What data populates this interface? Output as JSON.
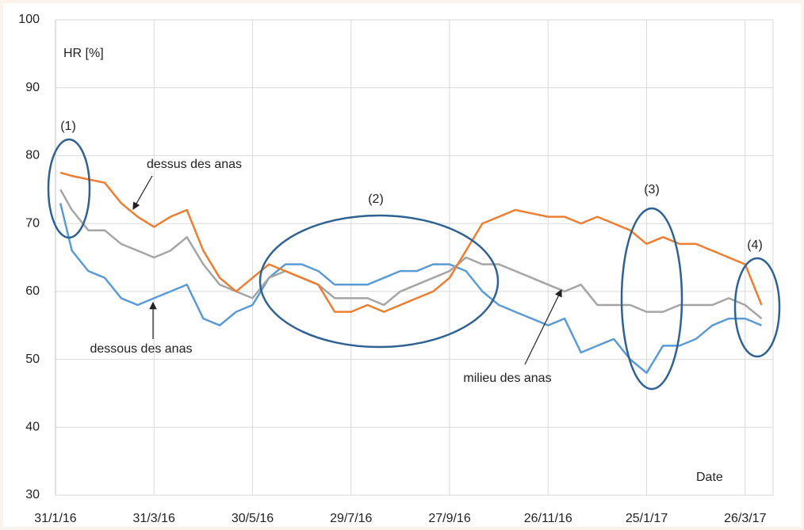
{
  "chart_data": {
    "type": "line",
    "x": [
      "3/2/16",
      "10/2/16",
      "20/2/16",
      "1/3/16",
      "11/3/16",
      "21/3/16",
      "31/3/16",
      "10/4/16",
      "20/4/16",
      "30/4/16",
      "10/5/16",
      "20/5/16",
      "30/5/16",
      "9/6/16",
      "19/6/16",
      "29/6/16",
      "9/7/16",
      "19/7/16",
      "29/7/16",
      "8/8/16",
      "18/8/16",
      "28/8/16",
      "7/9/16",
      "17/9/16",
      "27/9/16",
      "7/10/16",
      "17/10/16",
      "27/10/16",
      "6/11/16",
      "16/11/16",
      "26/11/16",
      "6/12/16",
      "16/12/16",
      "26/12/16",
      "5/1/17",
      "15/1/17",
      "25/1/17",
      "4/2/17",
      "14/2/17",
      "24/2/17",
      "6/3/17",
      "16/3/17",
      "26/3/17",
      "5/4/17"
    ],
    "series": [
      {
        "name": "dessus des anas",
        "color": "#ed7d31",
        "values": [
          77.5,
          77,
          76.5,
          76,
          73,
          71,
          69.5,
          71,
          72,
          66,
          62,
          60,
          62,
          64,
          63,
          62,
          61,
          57,
          57,
          58,
          57,
          58,
          59,
          60,
          62,
          66,
          70,
          71,
          72,
          71.5,
          71,
          71,
          70,
          71,
          70,
          69,
          67,
          68,
          67,
          67,
          66,
          65,
          64,
          58
        ]
      },
      {
        "name": "milieu des anas",
        "color": "#a5a5a5",
        "values": [
          75,
          72,
          69,
          69,
          67,
          66,
          65,
          66,
          68,
          64,
          61,
          60,
          59,
          62,
          63,
          62,
          61,
          59,
          59,
          59,
          58,
          60,
          61,
          62,
          63,
          65,
          64,
          64,
          63,
          62,
          61,
          60,
          61,
          58,
          58,
          58,
          57,
          57,
          58,
          58,
          58,
          59,
          58,
          56
        ]
      },
      {
        "name": "dessous des anas",
        "color": "#5b9bd5",
        "values": [
          73,
          66,
          63,
          62,
          59,
          58,
          59,
          60,
          61,
          56,
          55,
          57,
          58,
          62,
          64,
          64,
          63,
          61,
          61,
          61,
          62,
          63,
          63,
          64,
          64,
          63,
          60,
          58,
          57,
          56,
          55,
          56,
          51,
          52,
          53,
          50,
          48,
          52,
          52,
          53,
          55,
          56,
          56,
          55
        ]
      }
    ],
    "xlim": [
      "31/1/16",
      "12/4/17"
    ],
    "xticks": [
      "31/1/16",
      "31/3/16",
      "30/5/16",
      "29/7/16",
      "27/9/16",
      "26/11/16",
      "25/1/17",
      "26/3/17"
    ],
    "ylim": [
      30,
      100
    ],
    "yticks": [
      30,
      40,
      50,
      60,
      70,
      80,
      90,
      100
    ],
    "grid": true,
    "y_label": "HR [%]",
    "x_label": "Date",
    "annotations": [
      "(1)",
      "(2)",
      "(3)",
      "(4)"
    ]
  }
}
